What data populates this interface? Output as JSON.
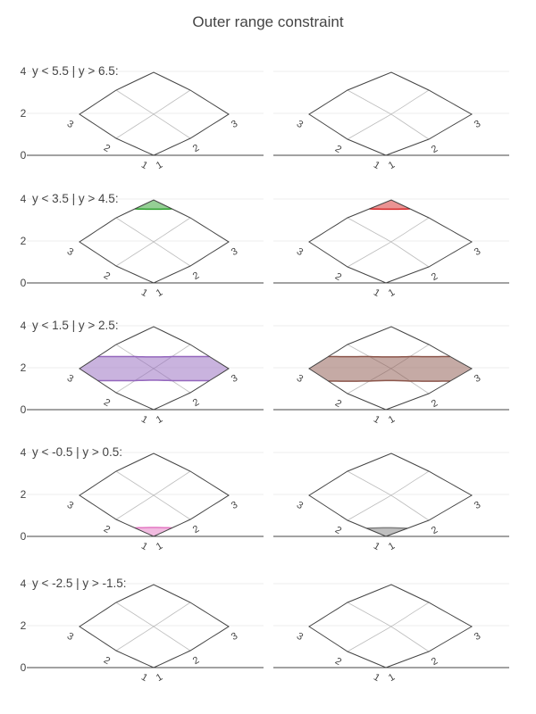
{
  "chart_data": {
    "type": "carpet-contour",
    "title": "Outer range constraint",
    "a": [
      1,
      2,
      3
    ],
    "b": [
      1,
      2,
      3
    ],
    "y_grid": [
      [
        0,
        1,
        2
      ],
      [
        1,
        2,
        3
      ],
      [
        2,
        3,
        4
      ]
    ],
    "y_ticks": [
      "0",
      "2",
      "4"
    ],
    "a_tick_labels": [
      "1",
      "2",
      "3"
    ],
    "b_tick_labels": [
      "1",
      "2",
      "3"
    ],
    "rows": [
      {
        "label": "y < 5.5 | y > 6.5:",
        "lo": 5.5,
        "hi": 6.5,
        "colors": [
          "#2ca02c",
          "#d62728"
        ]
      },
      {
        "label": "y < 3.5 | y > 4.5:",
        "lo": 3.5,
        "hi": 4.5,
        "colors": [
          "#2ca02c",
          "#d62728"
        ]
      },
      {
        "label": "y < 1.5 | y > 2.5:",
        "lo": 1.5,
        "hi": 2.5,
        "colors": [
          "#9467bd",
          "#8c564b"
        ]
      },
      {
        "label": "y < -0.5 | y > 0.5:",
        "lo": -0.5,
        "hi": 0.5,
        "colors": [
          "#e377c2",
          "#7f7f7f"
        ]
      },
      {
        "label": "y < -2.5 | y > -1.5:",
        "lo": -2.5,
        "hi": -1.5,
        "colors": [
          "#bcbd22",
          "#17becf"
        ]
      }
    ]
  }
}
